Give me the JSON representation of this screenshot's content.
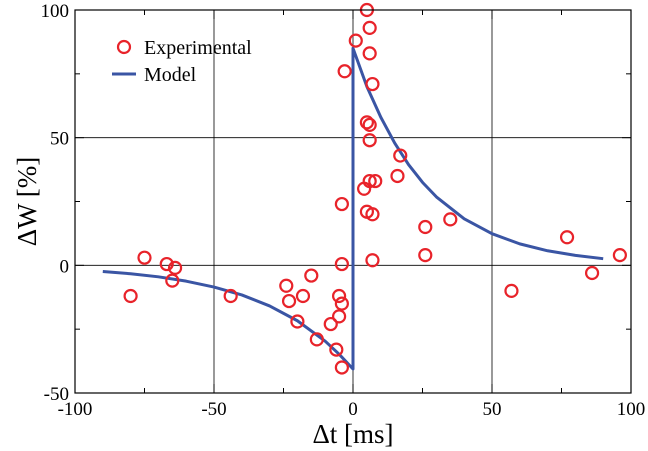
{
  "chart_data": {
    "type": "scatter",
    "title": "",
    "xlabel": "Δt [ms]",
    "ylabel": "ΔW [%]",
    "xlim": [
      -100,
      100
    ],
    "ylim": [
      -50,
      100
    ],
    "x_ticks": [
      -100,
      -50,
      0,
      50,
      100
    ],
    "y_ticks": [
      -50,
      0,
      50,
      100
    ],
    "x_tick_labels": [
      "-100",
      "-50",
      "0",
      "50",
      "100"
    ],
    "y_tick_labels": [
      "-50",
      "0",
      "50",
      "100"
    ],
    "grid": true,
    "legend_position": "top-left",
    "series": [
      {
        "name": "Experimental",
        "kind": "scatter",
        "marker": "open-circle",
        "color": "#e8232a",
        "points": [
          [
            -80,
            -12
          ],
          [
            -75,
            3
          ],
          [
            -67,
            0.5
          ],
          [
            -65,
            -6
          ],
          [
            -64,
            -1
          ],
          [
            -44,
            -12
          ],
          [
            -24,
            -8
          ],
          [
            -23,
            -14
          ],
          [
            -20,
            -22
          ],
          [
            -18,
            -12
          ],
          [
            -15,
            -4
          ],
          [
            -13,
            -29
          ],
          [
            -8,
            -23
          ],
          [
            -6,
            -33
          ],
          [
            -5,
            -12
          ],
          [
            -5,
            -20
          ],
          [
            -4,
            -40
          ],
          [
            -4,
            -15
          ],
          [
            -4,
            0.5
          ],
          [
            -4,
            24
          ],
          [
            -3,
            76
          ],
          [
            1,
            88
          ],
          [
            4,
            30
          ],
          [
            5,
            100
          ],
          [
            5,
            56
          ],
          [
            5,
            21
          ],
          [
            6,
            93
          ],
          [
            6,
            83
          ],
          [
            6,
            55
          ],
          [
            6,
            49
          ],
          [
            6,
            33
          ],
          [
            7,
            71
          ],
          [
            7,
            20
          ],
          [
            7,
            2
          ],
          [
            8,
            33
          ],
          [
            16,
            35
          ],
          [
            17,
            43
          ],
          [
            26,
            15
          ],
          [
            26,
            4
          ],
          [
            35,
            18
          ],
          [
            57,
            -10
          ],
          [
            77,
            11
          ],
          [
            86,
            -3
          ],
          [
            96,
            4
          ]
        ]
      },
      {
        "name": "Model",
        "kind": "line",
        "color": "#3a55a4",
        "points": [
          [
            -90,
            -2.4
          ],
          [
            -80,
            -3.3
          ],
          [
            -70,
            -4.5
          ],
          [
            -60,
            -6.2
          ],
          [
            -50,
            -8.5
          ],
          [
            -40,
            -11.6
          ],
          [
            -30,
            -15.9
          ],
          [
            -20,
            -21.7
          ],
          [
            -10,
            -29.7
          ],
          [
            -5,
            -34.8
          ],
          [
            0,
            -40.6
          ],
          [
            0,
            85
          ],
          [
            5,
            70
          ],
          [
            10,
            58
          ],
          [
            15,
            47.9
          ],
          [
            20,
            39.4
          ],
          [
            25,
            32.5
          ],
          [
            30,
            26.8
          ],
          [
            40,
            18.2
          ],
          [
            50,
            12.4
          ],
          [
            60,
            8.4
          ],
          [
            70,
            5.7
          ],
          [
            80,
            3.9
          ],
          [
            90,
            2.6
          ]
        ]
      }
    ]
  }
}
